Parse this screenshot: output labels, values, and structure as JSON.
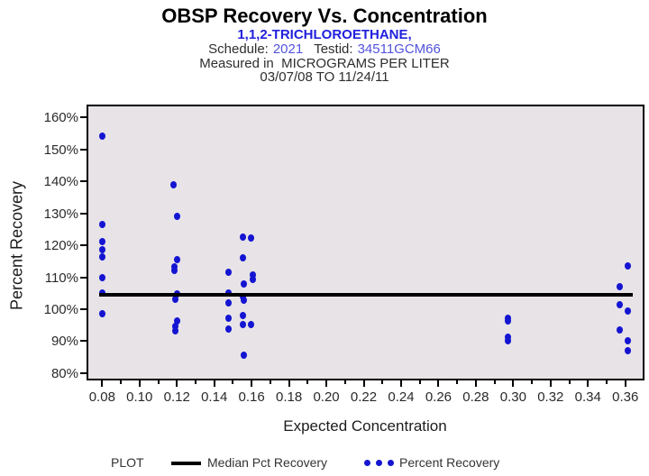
{
  "header": {
    "title": "OBSP Recovery Vs. Concentration",
    "analyte": "1,1,2-TRICHLOROETHANE,",
    "schedule_label": "Schedule:",
    "schedule_value": "2021",
    "testid_label": "Testid:",
    "testid_value": "34511GCM66",
    "units_line": "Measured in  MICROGRAMS PER LITER",
    "date_range": "03/07/08 TO 11/24/11"
  },
  "chart_data": {
    "type": "scatter",
    "title": "OBSP Recovery Vs. Concentration",
    "xlabel": "Expected Concentration",
    "ylabel": "Percent Recovery",
    "x_range": [
      0.0726,
      0.3693
    ],
    "y_range": [
      78.3,
      163.4
    ],
    "x_tick_values": [
      0.08,
      0.1,
      0.12,
      0.14,
      0.16,
      0.18,
      0.2,
      0.22,
      0.24,
      0.26,
      0.28,
      0.3,
      0.32,
      0.34,
      0.36
    ],
    "x_tick_labels": [
      "0.08",
      "0.10",
      "0.12",
      "0.14",
      "0.16",
      "0.18",
      "0.20",
      "0.22",
      "0.24",
      "0.26",
      "0.28",
      "0.30",
      "0.32",
      "0.34",
      "0.36"
    ],
    "x_ticks_minor": [
      0.09,
      0.11,
      0.13,
      0.15,
      0.17,
      0.19,
      0.21,
      0.23,
      0.25,
      0.27,
      0.29,
      0.31,
      0.33,
      0.35
    ],
    "y_tick_values": [
      160,
      150,
      140,
      130,
      120,
      110,
      100,
      90,
      80
    ],
    "y_tick_labels": [
      "160%",
      "150%",
      "140%",
      "130%",
      "120%",
      "110%",
      "100%",
      "90%",
      "80%"
    ],
    "grid": "off",
    "legend_position": "bottom",
    "median_line": {
      "value": 104.5,
      "x_start": 0.08,
      "x_end": 0.3625
    },
    "series_label": "Percent Recovery",
    "points": [
      [
        0.08,
        154.0
      ],
      [
        0.08,
        126.5
      ],
      [
        0.08,
        121.0
      ],
      [
        0.08,
        118.5
      ],
      [
        0.08,
        116.3
      ],
      [
        0.08,
        110.0
      ],
      [
        0.08,
        105.2
      ],
      [
        0.08,
        98.5
      ],
      [
        0.118,
        139.0
      ],
      [
        0.12,
        129.0
      ],
      [
        0.12,
        115.5
      ],
      [
        0.1185,
        113.3
      ],
      [
        0.1185,
        112.2
      ],
      [
        0.12,
        104.8
      ],
      [
        0.119,
        103.2
      ],
      [
        0.12,
        96.3
      ],
      [
        0.119,
        94.6
      ],
      [
        0.119,
        93.2
      ],
      [
        0.1475,
        111.5
      ],
      [
        0.1475,
        105.0
      ],
      [
        0.1475,
        102.0
      ],
      [
        0.1475,
        97.2
      ],
      [
        0.1475,
        93.7
      ],
      [
        0.1555,
        122.5
      ],
      [
        0.1595,
        122.3
      ],
      [
        0.1555,
        116.0
      ],
      [
        0.1605,
        110.8
      ],
      [
        0.1605,
        109.3
      ],
      [
        0.156,
        107.8
      ],
      [
        0.1555,
        104.0
      ],
      [
        0.156,
        102.9
      ],
      [
        0.1555,
        97.9
      ],
      [
        0.1555,
        95.2
      ],
      [
        0.1595,
        95.2
      ],
      [
        0.156,
        85.5
      ],
      [
        0.297,
        97.3
      ],
      [
        0.297,
        96.2
      ],
      [
        0.297,
        91.3
      ],
      [
        0.297,
        90.2
      ],
      [
        0.3615,
        113.5
      ],
      [
        0.357,
        107.0
      ],
      [
        0.357,
        101.5
      ],
      [
        0.3615,
        99.5
      ],
      [
        0.357,
        93.5
      ],
      [
        0.3615,
        90.0
      ],
      [
        0.3615,
        87.0
      ]
    ],
    "legend": {
      "title": "PLOT",
      "items": [
        {
          "label": "Median Pct Recovery",
          "symbol": "line"
        },
        {
          "label": "Percent Recovery",
          "symbol": "dots"
        }
      ]
    },
    "colors": {
      "point": "#1414d2",
      "median_line": "#000000",
      "plot_bg": "#e7e3e7",
      "analyte_blue": "#2020dd",
      "value_blue": "#5353dd"
    }
  }
}
